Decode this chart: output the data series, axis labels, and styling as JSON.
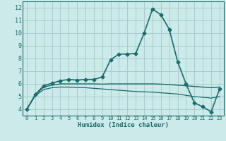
{
  "xlabel": "Humidex (Indice chaleur)",
  "background_color": "#cceaea",
  "grid_color": "#aacccc",
  "line_color": "#1a6b6b",
  "xlim": [
    -0.5,
    23.5
  ],
  "ylim": [
    3.5,
    12.5
  ],
  "xticks": [
    0,
    1,
    2,
    3,
    4,
    5,
    6,
    7,
    8,
    9,
    10,
    11,
    12,
    13,
    14,
    15,
    16,
    17,
    18,
    19,
    20,
    21,
    22,
    23
  ],
  "yticks": [
    4,
    5,
    6,
    7,
    8,
    9,
    10,
    11,
    12
  ],
  "series": [
    {
      "x": [
        0,
        1,
        2,
        3,
        4,
        5,
        6,
        7,
        8,
        9,
        10,
        11,
        12,
        13,
        14,
        15,
        16,
        17,
        18,
        19,
        20,
        21,
        22,
        23
      ],
      "y": [
        4.0,
        5.15,
        5.85,
        6.05,
        6.25,
        6.35,
        6.3,
        6.35,
        6.35,
        6.55,
        7.9,
        8.35,
        8.35,
        8.4,
        10.0,
        11.9,
        11.45,
        10.3,
        7.75,
        6.0,
        4.5,
        4.2,
        3.8,
        5.6
      ],
      "marker": "D",
      "markersize": 2.5,
      "linewidth": 1.2
    },
    {
      "x": [
        0,
        1,
        2,
        3,
        4,
        5,
        6,
        7,
        8,
        9,
        10,
        11,
        12,
        13,
        14,
        15,
        16,
        17,
        18,
        19,
        20,
        21,
        22,
        23
      ],
      "y": [
        4.0,
        5.1,
        5.75,
        5.9,
        6.0,
        6.0,
        6.0,
        6.0,
        6.0,
        5.98,
        6.0,
        6.0,
        6.0,
        6.0,
        6.0,
        6.0,
        5.98,
        5.95,
        5.9,
        5.85,
        5.8,
        5.75,
        5.7,
        5.75
      ],
      "marker": null,
      "linewidth": 1.0
    },
    {
      "x": [
        0,
        1,
        2,
        3,
        4,
        5,
        6,
        7,
        8,
        9,
        10,
        11,
        12,
        13,
        14,
        15,
        16,
        17,
        18,
        19,
        20,
        21,
        22,
        23
      ],
      "y": [
        4.0,
        5.05,
        5.55,
        5.7,
        5.75,
        5.75,
        5.72,
        5.7,
        5.65,
        5.6,
        5.55,
        5.5,
        5.45,
        5.4,
        5.38,
        5.35,
        5.3,
        5.25,
        5.2,
        5.1,
        5.0,
        4.95,
        4.88,
        5.0
      ],
      "marker": null,
      "linewidth": 0.9
    }
  ]
}
